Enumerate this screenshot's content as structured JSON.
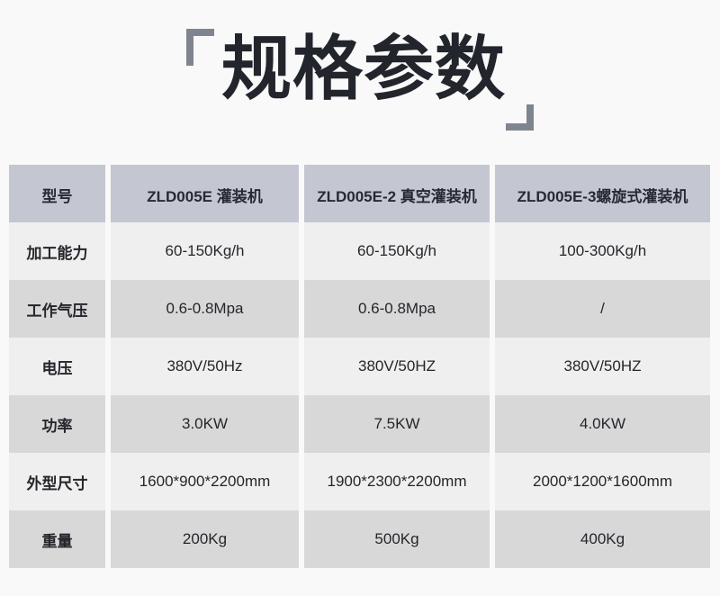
{
  "page": {
    "title": "规格参数",
    "background": "#f9f9f9",
    "bracket_color": "#7f858e",
    "title_color": "#22252c"
  },
  "table": {
    "colors": {
      "header_bg": "#c4c7d2",
      "row_light_bg": "#efefef",
      "row_dark_bg": "#d8d8d8",
      "text": "#24262b"
    },
    "columns": [
      "型号",
      "ZLD005E 灌装机",
      "ZLD005E-2 真空灌装机",
      "ZLD005E-3螺旋式灌装机"
    ],
    "rows": [
      {
        "label": "加工能力",
        "values": [
          "60-150Kg/h",
          "60-150Kg/h",
          "100-300Kg/h"
        ]
      },
      {
        "label": "工作气压",
        "values": [
          "0.6-0.8Mpa",
          "0.6-0.8Mpa",
          "/"
        ]
      },
      {
        "label": "电压",
        "values": [
          "380V/50Hz",
          "380V/50HZ",
          "380V/50HZ"
        ]
      },
      {
        "label": "功率",
        "values": [
          "3.0KW",
          "7.5KW",
          "4.0KW"
        ]
      },
      {
        "label": "外型尺寸",
        "values": [
          "1600*900*2200mm",
          "1900*2300*2200mm",
          "2000*1200*1600mm"
        ]
      },
      {
        "label": "重量",
        "values": [
          "200Kg",
          "500Kg",
          "400Kg"
        ]
      }
    ]
  }
}
